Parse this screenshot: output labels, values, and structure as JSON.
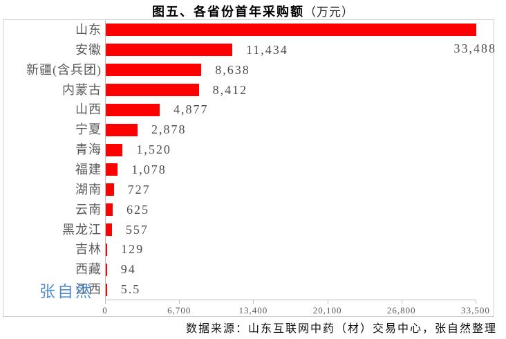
{
  "title": {
    "main": "图五、各省份首年采购额",
    "unit": "（万元）"
  },
  "watermark_text": "张自然",
  "source_text": "数据来源：山东互联网中药（材）交易中心，张自然整理",
  "colors": {
    "bar": "#FF0000",
    "axis_line": "#BFBFBF",
    "plot_border": "#CCCCCC",
    "category_label": "#595959",
    "data_label": "#4D4D4D",
    "tick_label": "#595959",
    "watermark": "#4182CF",
    "title_text": "#000000"
  },
  "chart_data": {
    "type": "bar",
    "orientation": "horizontal",
    "title": "图五、各省份首年采购额（万元）",
    "categories": [
      "山东",
      "安徽",
      "新疆(含兵团)",
      "内蒙古",
      "山西",
      "宁夏",
      "青海",
      "福建",
      "湖南",
      "云南",
      "黑龙江",
      "吉林",
      "西藏",
      "江西"
    ],
    "values": [
      33488,
      11434,
      8638,
      8412,
      4877,
      2878,
      1520,
      1078,
      727,
      625,
      557,
      129,
      94,
      5.5
    ],
    "data_labels": [
      "33,488",
      "11,434",
      "8,638",
      "8,412",
      "4,877",
      "2,878",
      "1,520",
      "1,078",
      "727",
      "625",
      "557",
      "129",
      "94",
      "5.5"
    ],
    "x_tick_labels": [
      "0",
      "6,700",
      "13,400",
      "20,100",
      "26,800",
      "33,500"
    ],
    "x_tick_values": [
      0,
      6700,
      13400,
      20100,
      26800,
      33500
    ],
    "xlim": [
      0,
      33500
    ],
    "gridlines": false,
    "legend": "none",
    "bar_color": "#FF0000",
    "source": "数据来源：山东互联网中药（材）交易中心，张自然整理",
    "watermark": "张自然"
  }
}
